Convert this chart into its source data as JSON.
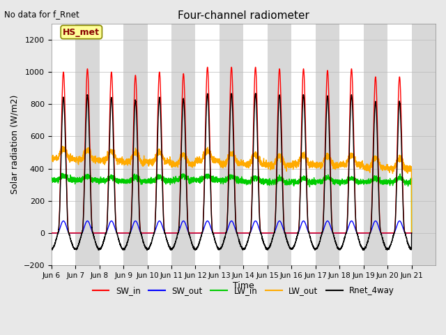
{
  "title": "Four-channel radiometer",
  "top_left_text": "No data for f_Rnet",
  "ylabel": "Solar radiation (W/m2)",
  "xlabel": "Time",
  "ylim": [
    -200,
    1300
  ],
  "x_tick_labels": [
    "Jun 6",
    "Jun 7",
    "Jun 8",
    "Jun 9",
    "Jun 10",
    "Jun 11",
    "Jun 12",
    "Jun 13",
    "Jun 14",
    "Jun 15",
    "Jun 16",
    "Jun 17",
    "Jun 18",
    "Jun 19",
    "Jun 20",
    "Jun 21"
  ],
  "x_tick_positions": [
    5.0,
    6.0,
    7.0,
    8.0,
    9.0,
    10.0,
    11.0,
    12.0,
    13.0,
    14.0,
    15.0,
    16.0,
    17.0,
    18.0,
    19.0,
    20.0
  ],
  "legend_label": "HS_met",
  "background_color": "#e8e8e8",
  "band_colors": [
    "#ffffff",
    "#d8d8d8"
  ],
  "legend_entries": [
    {
      "label": "SW_in",
      "color": "#ff0000"
    },
    {
      "label": "SW_out",
      "color": "#0000ff"
    },
    {
      "label": "LW_in",
      "color": "#00cc00"
    },
    {
      "label": "LW_out",
      "color": "#ffaa00"
    },
    {
      "label": "Rnet_4way",
      "color": "#000000"
    }
  ],
  "n_days": 15,
  "day_start": 5.0,
  "SW_in_peak": 1000,
  "SW_out_peak": 75,
  "LW_in_base": 330,
  "LW_out_base": 420,
  "Rnet_peak": 840,
  "Rnet_night": -100,
  "day_rise": 0.27,
  "day_set": 0.73,
  "sharpness": 2.5
}
